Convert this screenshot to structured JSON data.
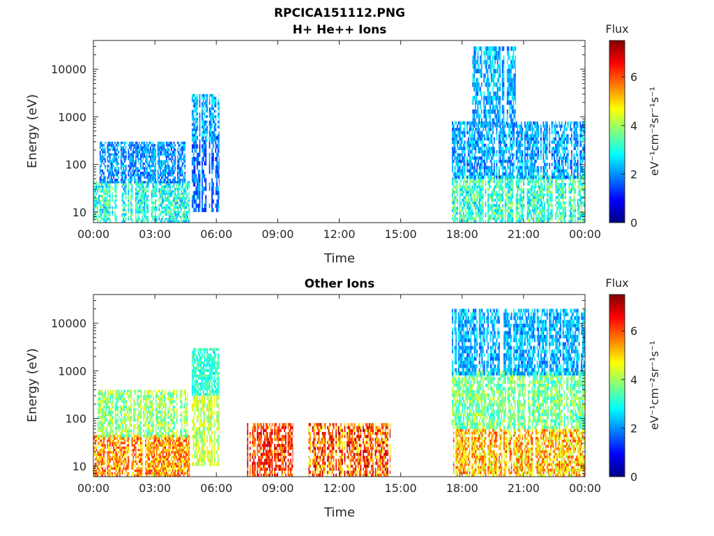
{
  "figure": {
    "title": "RPCICA151112.PNG"
  },
  "colormap": [
    "#00007f",
    "#0000ff",
    "#007fff",
    "#00ffff",
    "#7fff7f",
    "#ffff00",
    "#ff7f00",
    "#ff0000",
    "#7f0000"
  ],
  "chart_data": [
    {
      "type": "heatmap",
      "title": "H+ He++ Ions",
      "xlabel": "Time",
      "ylabel": "Energy (eV)",
      "x_ticks": [
        "00:00",
        "03:00",
        "06:00",
        "09:00",
        "12:00",
        "15:00",
        "18:00",
        "21:00",
        "00:00"
      ],
      "xlim_hours": [
        0,
        24
      ],
      "y_scale": "log",
      "y_ticks": [
        {
          "value": 10,
          "label": "10"
        },
        {
          "value": 100,
          "label": "100"
        },
        {
          "value": 1000,
          "label": "1000"
        },
        {
          "value": 10000,
          "label": "10000"
        }
      ],
      "ylim": [
        6,
        40000
      ],
      "colorbar": {
        "title": "Flux",
        "unit": "eV⁻¹cm⁻²sr⁻¹s⁻¹",
        "range": [
          0,
          7.5
        ],
        "ticks": [
          "0",
          "2",
          "4",
          "6"
        ]
      },
      "blocks": [
        {
          "t0": 0.0,
          "t1": 4.7,
          "emin": 6,
          "emax": 45,
          "flux": [
            2.0,
            4.0
          ]
        },
        {
          "t0": 0.3,
          "t1": 4.5,
          "emin": 40,
          "emax": 300,
          "flux": [
            1.2,
            2.8
          ]
        },
        {
          "t0": 4.8,
          "t1": 6.15,
          "emin": 10,
          "emax": 400,
          "flux": [
            1.0,
            2.5
          ]
        },
        {
          "t0": 4.8,
          "t1": 6.15,
          "emin": 300,
          "emax": 3000,
          "flux": [
            1.5,
            3.0
          ]
        },
        {
          "t0": 17.5,
          "t1": 24.0,
          "emin": 6,
          "emax": 60,
          "flux": [
            2.2,
            4.2
          ]
        },
        {
          "t0": 17.5,
          "t1": 24.0,
          "emin": 50,
          "emax": 800,
          "flux": [
            1.3,
            3.0
          ]
        },
        {
          "t0": 18.5,
          "t1": 20.6,
          "emin": 600,
          "emax": 30000,
          "flux": [
            1.5,
            3.0
          ]
        }
      ]
    },
    {
      "type": "heatmap",
      "title": "Other Ions",
      "xlabel": "Time",
      "ylabel": "Energy (eV)",
      "x_ticks": [
        "00:00",
        "03:00",
        "06:00",
        "09:00",
        "12:00",
        "15:00",
        "18:00",
        "21:00",
        "00:00"
      ],
      "xlim_hours": [
        0,
        24
      ],
      "y_scale": "log",
      "y_ticks": [
        {
          "value": 10,
          "label": "10"
        },
        {
          "value": 100,
          "label": "100"
        },
        {
          "value": 1000,
          "label": "1000"
        },
        {
          "value": 10000,
          "label": "10000"
        }
      ],
      "ylim": [
        6,
        40000
      ],
      "colorbar": {
        "title": "Flux",
        "unit": "eV⁻¹cm⁻²sr⁻¹s⁻¹",
        "range": [
          0,
          7.5
        ],
        "ticks": [
          "0",
          "2",
          "4",
          "6"
        ]
      },
      "blocks": [
        {
          "t0": 0.0,
          "t1": 4.7,
          "emin": 6,
          "emax": 45,
          "flux": [
            4.5,
            6.5
          ]
        },
        {
          "t0": 0.2,
          "t1": 4.6,
          "emin": 40,
          "emax": 400,
          "flux": [
            3.0,
            4.8
          ]
        },
        {
          "t0": 4.8,
          "t1": 6.15,
          "emin": 10,
          "emax": 300,
          "flux": [
            3.5,
            5.0
          ]
        },
        {
          "t0": 4.8,
          "t1": 6.15,
          "emin": 300,
          "emax": 3000,
          "flux": [
            2.5,
            3.8
          ]
        },
        {
          "t0": 7.5,
          "t1": 9.75,
          "emin": 6,
          "emax": 80,
          "flux": [
            5.2,
            7.2
          ]
        },
        {
          "t0": 10.5,
          "t1": 14.5,
          "emin": 6,
          "emax": 80,
          "flux": [
            4.5,
            7.3
          ]
        },
        {
          "t0": 17.5,
          "t1": 24.0,
          "emin": 6,
          "emax": 60,
          "flux": [
            4.0,
            6.3
          ]
        },
        {
          "t0": 17.5,
          "t1": 24.0,
          "emin": 60,
          "emax": 1000,
          "flux": [
            2.8,
            4.5
          ]
        },
        {
          "t0": 17.5,
          "t1": 24.0,
          "emin": 800,
          "emax": 20000,
          "flux": [
            1.5,
            3.0
          ]
        }
      ]
    }
  ]
}
